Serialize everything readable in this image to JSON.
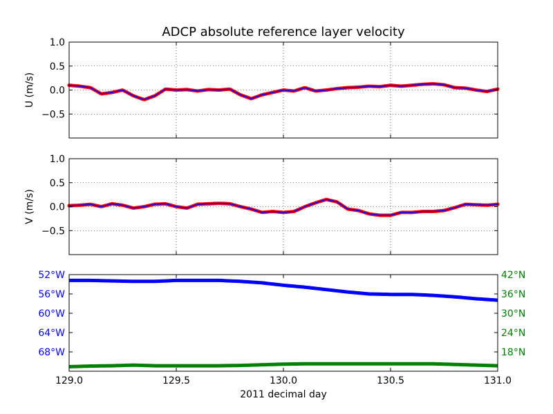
{
  "title": "ADCP absolute reference layer velocity",
  "colors": {
    "dot": "#ff0000",
    "line": "#0000ff",
    "lon": "#0000ff",
    "lat": "#008000",
    "grid": "#000000",
    "axis": "#000000"
  },
  "chart_data": [
    {
      "type": "scatter",
      "panel": "u",
      "ylabel": "U (m/s)",
      "xlim": [
        129.0,
        131.0
      ],
      "ylim": [
        -1.0,
        1.0
      ],
      "yticks": [
        1.0,
        0.5,
        0.0,
        -0.5
      ],
      "ytick_labels": [
        "1.0",
        "0.5",
        "0.0",
        "−0.5"
      ],
      "xticks": [
        129.0,
        129.5,
        130.0,
        130.5,
        131.0
      ],
      "grid": true,
      "series": [
        {
          "style": "red dots with blue line",
          "x": [
            129.0,
            129.05,
            129.1,
            129.15,
            129.2,
            129.25,
            129.3,
            129.35,
            129.4,
            129.45,
            129.5,
            129.55,
            129.6,
            129.65,
            129.7,
            129.75,
            129.8,
            129.85,
            129.9,
            129.95,
            130.0,
            130.05,
            130.1,
            130.15,
            130.2,
            130.25,
            130.3,
            130.35,
            130.4,
            130.45,
            130.5,
            130.55,
            130.6,
            130.65,
            130.7,
            130.75,
            130.8,
            130.85,
            130.9,
            130.95,
            131.0
          ],
          "y": [
            0.1,
            0.08,
            0.05,
            -0.08,
            -0.05,
            0.0,
            -0.12,
            -0.2,
            -0.12,
            0.02,
            0.0,
            0.01,
            -0.02,
            0.01,
            0.0,
            0.02,
            -0.1,
            -0.18,
            -0.1,
            -0.05,
            0.0,
            -0.02,
            0.05,
            -0.02,
            0.0,
            0.03,
            0.05,
            0.06,
            0.08,
            0.07,
            0.1,
            0.08,
            0.1,
            0.12,
            0.13,
            0.11,
            0.05,
            0.04,
            0.0,
            -0.03,
            0.02
          ]
        }
      ]
    },
    {
      "type": "scatter",
      "panel": "v",
      "ylabel": "V (m/s)",
      "xlim": [
        129.0,
        131.0
      ],
      "ylim": [
        -1.0,
        1.0
      ],
      "yticks": [
        1.0,
        0.5,
        0.0,
        -0.5
      ],
      "ytick_labels": [
        "1.0",
        "0.5",
        "0.0",
        "−0.5"
      ],
      "xticks": [
        129.0,
        129.5,
        130.0,
        130.5,
        131.0
      ],
      "grid": true,
      "series": [
        {
          "style": "red dots with blue line",
          "x": [
            129.0,
            129.05,
            129.1,
            129.15,
            129.2,
            129.25,
            129.3,
            129.35,
            129.4,
            129.45,
            129.5,
            129.55,
            129.6,
            129.65,
            129.7,
            129.75,
            129.8,
            129.85,
            129.9,
            129.95,
            130.0,
            130.05,
            130.1,
            130.15,
            130.2,
            130.25,
            130.3,
            130.35,
            130.4,
            130.45,
            130.5,
            130.55,
            130.6,
            130.65,
            130.7,
            130.75,
            130.8,
            130.85,
            130.9,
            130.95,
            131.0
          ],
          "y": [
            0.02,
            0.03,
            0.05,
            0.0,
            0.06,
            0.03,
            -0.03,
            0.0,
            0.05,
            0.06,
            0.0,
            -0.03,
            0.05,
            0.06,
            0.07,
            0.06,
            0.0,
            -0.05,
            -0.12,
            -0.1,
            -0.12,
            -0.1,
            0.0,
            0.08,
            0.15,
            0.1,
            -0.05,
            -0.08,
            -0.15,
            -0.18,
            -0.18,
            -0.12,
            -0.12,
            -0.1,
            -0.1,
            -0.08,
            -0.02,
            0.05,
            0.04,
            0.03,
            0.05
          ]
        }
      ]
    },
    {
      "type": "line",
      "panel": "position",
      "xlabel": "2011 decimal day",
      "xlim": [
        129.0,
        131.0
      ],
      "xticks": [
        129.0,
        129.5,
        130.0,
        130.5,
        131.0
      ],
      "xtick_labels": [
        "129.0",
        "129.5",
        "130.0",
        "130.5",
        "131.0"
      ],
      "grid": false,
      "left_axis": {
        "ylim": [
          -52.0,
          -72.0
        ],
        "yticks": [
          -52,
          -56,
          -60,
          -64,
          -68
        ],
        "ytick_labels": [
          "52°W",
          "56°W",
          "60°W",
          "64°W",
          "68°W"
        ]
      },
      "right_axis": {
        "ylim": [
          12.0,
          42.0
        ],
        "yticks": [
          42,
          36,
          30,
          24,
          18
        ],
        "ytick_labels": [
          "42°N",
          "36°N",
          "30°N",
          "24°N",
          "18°N"
        ]
      },
      "series": [
        {
          "axis": "left",
          "x": [
            129.0,
            129.1,
            129.2,
            129.3,
            129.4,
            129.5,
            129.6,
            129.7,
            129.8,
            129.9,
            130.0,
            130.1,
            130.2,
            130.3,
            130.4,
            130.5,
            130.6,
            130.7,
            130.8,
            130.9,
            131.0
          ],
          "y": [
            -53.2,
            -53.2,
            -53.3,
            -53.4,
            -53.4,
            -53.2,
            -53.2,
            -53.2,
            -53.4,
            -53.7,
            -54.2,
            -54.6,
            -55.1,
            -55.6,
            -56.0,
            -56.1,
            -56.1,
            -56.3,
            -56.6,
            -57.0,
            -57.3
          ]
        },
        {
          "axis": "right",
          "x": [
            129.0,
            129.1,
            129.2,
            129.3,
            129.4,
            129.5,
            129.6,
            129.7,
            129.8,
            129.9,
            130.0,
            130.1,
            130.2,
            130.3,
            130.4,
            130.5,
            130.6,
            130.7,
            130.8,
            130.9,
            131.0
          ],
          "y": [
            13.4,
            13.6,
            13.7,
            13.9,
            13.7,
            13.7,
            13.7,
            13.7,
            13.8,
            14.0,
            14.2,
            14.3,
            14.3,
            14.3,
            14.3,
            14.3,
            14.3,
            14.3,
            14.1,
            13.9,
            13.7
          ]
        }
      ]
    }
  ]
}
